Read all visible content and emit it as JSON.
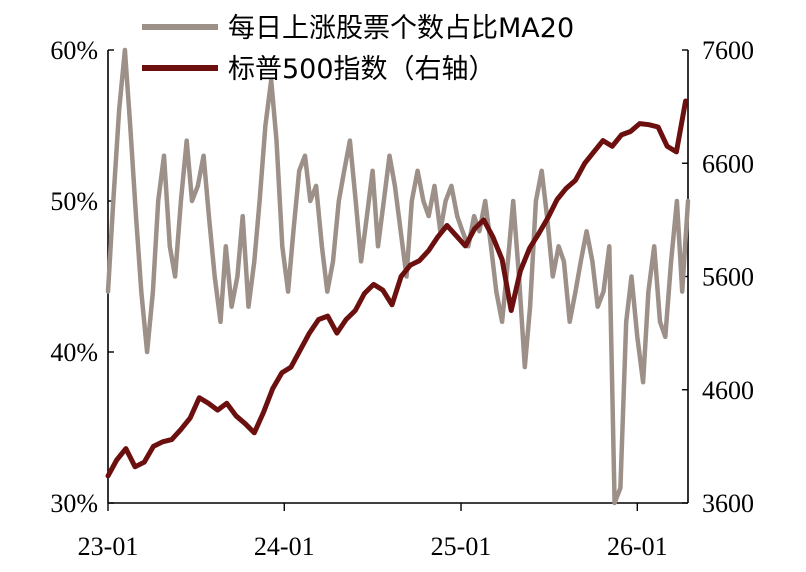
{
  "chart_data": {
    "type": "line",
    "title": "",
    "xlabel": "",
    "ylabel_left": "",
    "ylabel_right": "",
    "x_ticks": [
      "23-01",
      "24-01",
      "25-01",
      "26-01"
    ],
    "y_left": {
      "min": 30,
      "max": 60,
      "ticks": [
        "30%",
        "40%",
        "50%",
        "60%"
      ]
    },
    "y_right": {
      "min": 3600,
      "max": 7600,
      "ticks": [
        "3600",
        "4600",
        "5600",
        "6600",
        "7600"
      ]
    },
    "grid": false,
    "legend_position": "top",
    "series": [
      {
        "name": "每日上涨股票个数占比MA20",
        "axis": "left",
        "color": "#9c9089",
        "x": [
          "2023-01-01",
          "2023-01-12",
          "2023-01-24",
          "2023-02-05",
          "2023-02-16",
          "2023-02-28",
          "2023-03-11",
          "2023-03-23",
          "2023-04-04",
          "2023-04-15",
          "2023-04-27",
          "2023-05-09",
          "2023-05-20",
          "2023-06-01",
          "2023-06-13",
          "2023-06-24",
          "2023-07-06",
          "2023-07-18",
          "2023-07-29",
          "2023-08-10",
          "2023-08-22",
          "2023-09-02",
          "2023-09-14",
          "2023-09-26",
          "2023-10-07",
          "2023-10-19",
          "2023-10-31",
          "2023-11-11",
          "2023-11-23",
          "2023-12-05",
          "2023-12-16",
          "2023-12-28",
          "2024-01-09",
          "2024-01-20",
          "2024-02-01",
          "2024-02-13",
          "2024-02-24",
          "2024-03-07",
          "2024-03-19",
          "2024-03-30",
          "2024-04-11",
          "2024-04-23",
          "2024-05-04",
          "2024-05-16",
          "2024-05-28",
          "2024-06-08",
          "2024-06-20",
          "2024-07-02",
          "2024-07-13",
          "2024-07-25",
          "2024-08-06",
          "2024-08-17",
          "2024-08-29",
          "2024-09-10",
          "2024-09-21",
          "2024-10-03",
          "2024-10-15",
          "2024-10-26",
          "2024-11-07",
          "2024-11-19",
          "2024-11-30",
          "2024-12-12",
          "2024-12-24",
          "2025-01-04",
          "2025-01-16",
          "2025-01-28",
          "2025-02-08",
          "2025-02-20",
          "2025-03-04",
          "2025-03-15",
          "2025-03-27",
          "2025-04-08",
          "2025-04-19",
          "2025-05-01",
          "2025-05-13",
          "2025-05-24",
          "2025-06-05",
          "2025-06-17",
          "2025-06-28",
          "2025-07-10",
          "2025-07-22",
          "2025-08-02",
          "2025-08-14",
          "2025-08-26",
          "2025-09-06",
          "2025-09-18",
          "2025-09-30",
          "2025-10-11",
          "2025-10-23",
          "2025-11-04",
          "2025-11-15",
          "2025-11-27",
          "2025-12-09",
          "2025-12-20",
          "2026-01-01",
          "2026-01-13",
          "2026-01-24",
          "2026-02-05",
          "2026-02-17",
          "2026-02-28",
          "2026-03-12",
          "2026-03-24",
          "2026-04-04",
          "2026-04-16"
        ],
        "values": [
          44,
          50,
          56,
          60,
          55,
          49,
          44,
          40,
          44,
          50,
          53,
          47,
          45,
          50,
          54,
          50,
          51,
          53,
          49,
          45,
          42,
          47,
          43,
          45,
          49,
          43,
          46,
          50,
          55,
          58,
          54,
          47,
          44,
          48,
          52,
          53,
          50,
          51,
          47,
          44,
          46,
          50,
          52,
          54,
          50,
          46,
          49,
          52,
          47,
          50,
          53,
          51,
          48,
          45,
          50,
          52,
          50,
          49,
          51,
          48,
          50,
          51,
          49,
          48,
          47,
          49,
          48,
          50,
          47,
          44,
          42,
          46,
          50,
          45,
          39,
          43,
          50,
          52,
          49,
          45,
          47,
          46,
          42,
          44,
          46,
          48,
          46,
          43,
          44,
          47,
          30,
          31,
          42,
          45,
          41,
          38,
          44,
          47,
          42,
          41,
          46,
          50,
          44,
          50
        ]
      },
      {
        "name": "标普500指数（右轴）",
        "axis": "right",
        "color": "#6b0f0f",
        "x": [
          "2023-01-01",
          "2023-01-19",
          "2023-02-07",
          "2023-02-26",
          "2023-03-17",
          "2023-04-05",
          "2023-04-24",
          "2023-05-13",
          "2023-06-01",
          "2023-06-20",
          "2023-07-09",
          "2023-07-28",
          "2023-08-16",
          "2023-09-04",
          "2023-09-23",
          "2023-10-12",
          "2023-10-31",
          "2023-11-19",
          "2023-12-08",
          "2023-12-27",
          "2024-01-15",
          "2024-02-03",
          "2024-02-22",
          "2024-03-12",
          "2024-03-31",
          "2024-04-19",
          "2024-05-08",
          "2024-05-27",
          "2024-06-15",
          "2024-07-04",
          "2024-07-23",
          "2024-08-11",
          "2024-08-30",
          "2024-09-18",
          "2024-10-07",
          "2024-10-26",
          "2024-11-14",
          "2024-12-03",
          "2024-12-22",
          "2025-01-10",
          "2025-01-29",
          "2025-02-17",
          "2025-03-08",
          "2025-03-27",
          "2025-04-15",
          "2025-05-04",
          "2025-05-23",
          "2025-06-11",
          "2025-06-30",
          "2025-07-19",
          "2025-08-07",
          "2025-08-26",
          "2025-09-14",
          "2025-10-03",
          "2025-10-22",
          "2025-11-10",
          "2025-11-29",
          "2025-12-18",
          "2026-01-06",
          "2026-01-25",
          "2026-02-13",
          "2026-03-04",
          "2026-03-23",
          "2026-04-11"
        ],
        "values": [
          3839,
          3980,
          4080,
          3920,
          3960,
          4100,
          4140,
          4160,
          4250,
          4350,
          4530,
          4480,
          4420,
          4480,
          4370,
          4300,
          4220,
          4400,
          4610,
          4750,
          4800,
          4950,
          5100,
          5220,
          5250,
          5100,
          5220,
          5300,
          5450,
          5530,
          5480,
          5350,
          5600,
          5700,
          5740,
          5830,
          5950,
          6050,
          5960,
          5870,
          6020,
          6100,
          5950,
          5750,
          5300,
          5650,
          5850,
          5980,
          6120,
          6280,
          6380,
          6450,
          6600,
          6700,
          6800,
          6750,
          6850,
          6880,
          6950,
          6940,
          6920,
          6750,
          6700,
          7150
        ]
      }
    ]
  }
}
